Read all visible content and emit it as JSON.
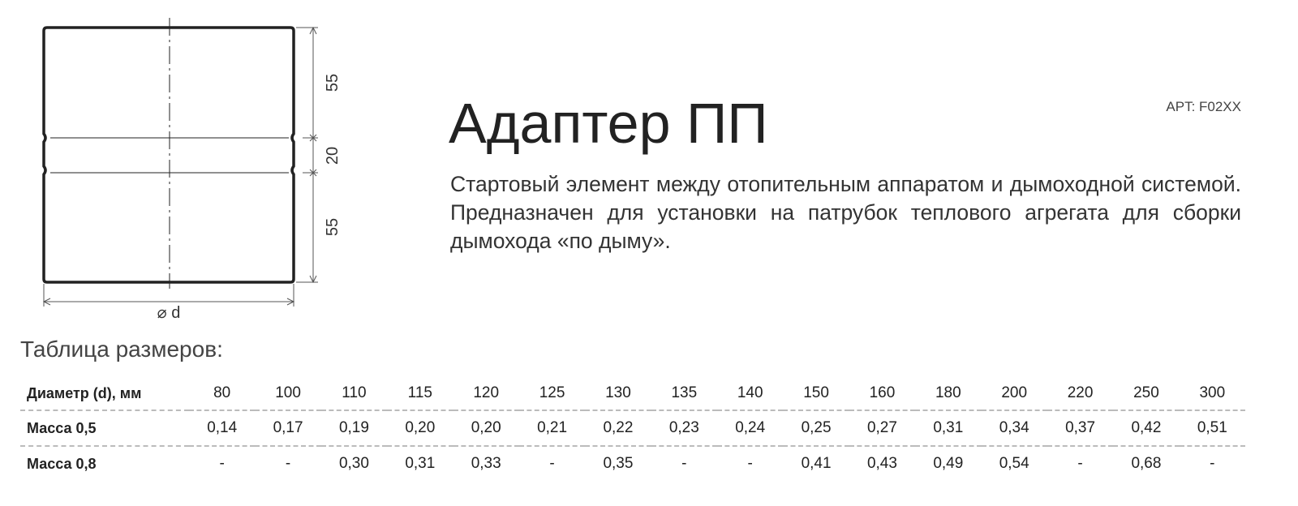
{
  "drawing": {
    "dim_top": "55",
    "dim_middle": "20",
    "dim_bottom": "55",
    "dim_diameter": "⌀ d"
  },
  "product": {
    "title": "Адаптер ПП",
    "article": "APT: F02XX",
    "description": "Стартовый элемент между отопительным аппаратом и дымоходной системой. Предназначен для установки на патрубок теплового агрегата для сборки дымохода «по дыму»."
  },
  "size_table": {
    "title": "Таблица размеров:",
    "rows": [
      {
        "label": "Диаметр (d), мм",
        "values": [
          "80",
          "100",
          "110",
          "115",
          "120",
          "125",
          "130",
          "135",
          "140",
          "150",
          "160",
          "180",
          "200",
          "220",
          "250",
          "300"
        ]
      },
      {
        "label": "Масса 0,5",
        "values": [
          "0,14",
          "0,17",
          "0,19",
          "0,20",
          "0,20",
          "0,21",
          "0,22",
          "0,23",
          "0,24",
          "0,25",
          "0,27",
          "0,31",
          "0,34",
          "0,37",
          "0,42",
          "0,51"
        ]
      },
      {
        "label": "Масса 0,8",
        "values": [
          "-",
          "-",
          "0,30",
          "0,31",
          "0,33",
          "-",
          "0,35",
          "-",
          "-",
          "0,41",
          "0,43",
          "0,49",
          "0,54",
          "-",
          "0,68",
          "-"
        ]
      }
    ]
  }
}
